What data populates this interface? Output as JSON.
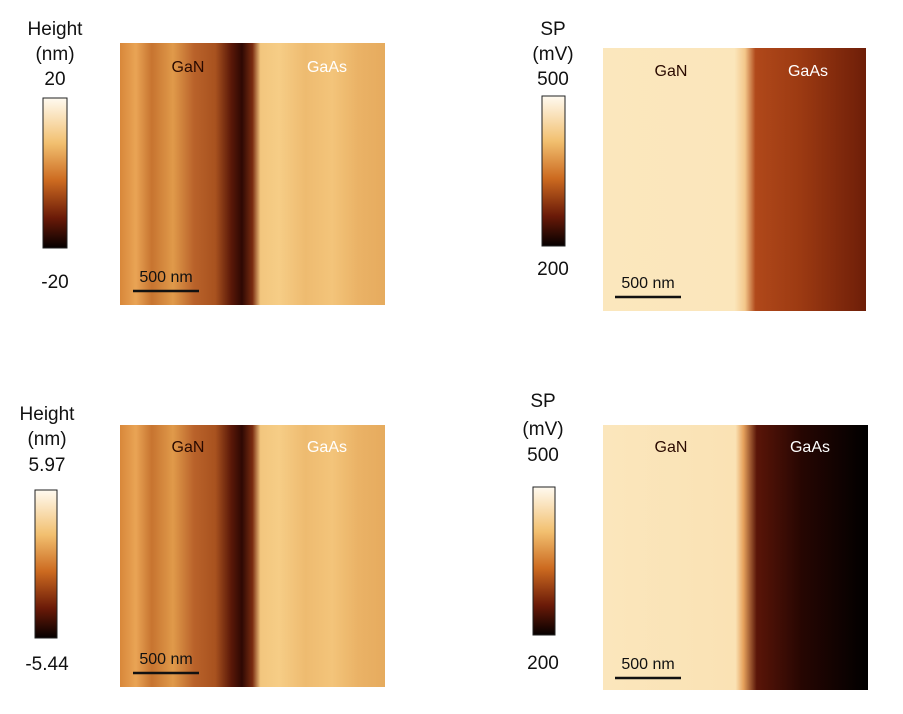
{
  "panels": [
    {
      "label": [
        "Height",
        "(nm)"
      ],
      "max": "20",
      "min": "-20",
      "regions": [
        "GaN",
        "GaAs"
      ],
      "scalebar": "500 nm"
    },
    {
      "label": [
        "SP",
        "(mV)"
      ],
      "max": "500",
      "min": "200",
      "regions": [
        "GaN",
        "GaAs"
      ],
      "scalebar": "500 nm"
    },
    {
      "label": [
        "Height",
        "(nm)"
      ],
      "max": "5.97",
      "min": "-5.44",
      "regions": [
        "GaN",
        "GaAs"
      ],
      "scalebar": "500 nm"
    },
    {
      "label": [
        "SP",
        "(mV)"
      ],
      "max": "500",
      "min": "200",
      "regions": [
        "GaN",
        "GaAs"
      ],
      "scalebar": "500 nm"
    }
  ]
}
